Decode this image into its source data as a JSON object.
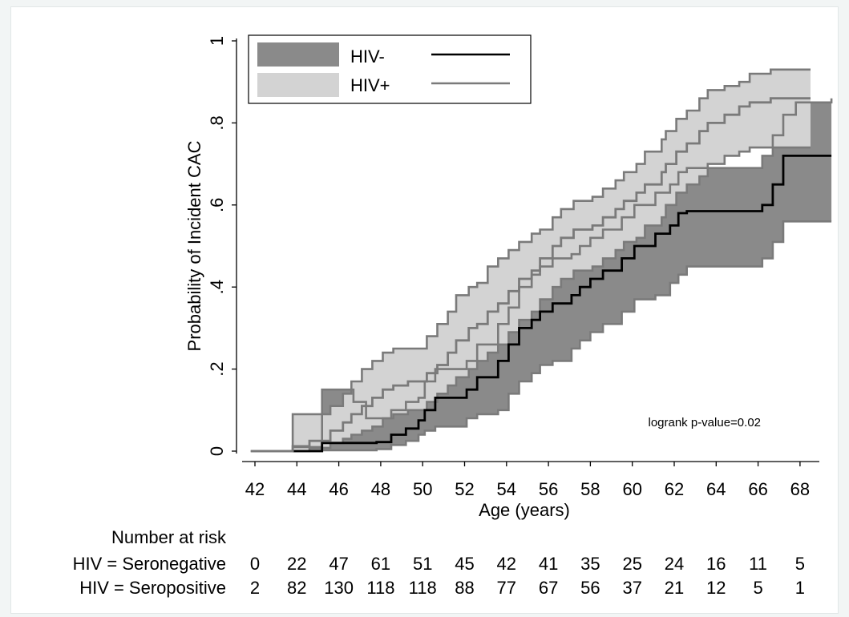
{
  "chart_data": {
    "type": "area",
    "ylabel": "Probability of Incident CAC",
    "xlabel": "Age (years)",
    "xlim": [
      41.5,
      70.5
    ],
    "ylim": [
      0,
      1
    ],
    "x_ticks": [
      "42",
      "44",
      "46",
      "48",
      "50",
      "52",
      "54",
      "56",
      "58",
      "60",
      "62",
      "64",
      "66",
      "68"
    ],
    "y_ticks": [
      "0",
      ".2",
      ".4",
      ".6",
      ".8",
      "1"
    ],
    "annotation": "logrank p-value=0.02",
    "legend": {
      "placement": "top-left",
      "entries": [
        {
          "label": "HIV-",
          "band_color": "#8a8a8a",
          "line_color": "#000000"
        },
        {
          "label": "HIV+",
          "band_color": "#d3d3d3",
          "line_color": "#7a7a7a"
        }
      ]
    },
    "series": [
      {
        "name": "HIV-",
        "color": "#000000",
        "band_color": "#8a8a8a",
        "estimate": [
          [
            43.8,
            0
          ],
          [
            45.2,
            0.02
          ],
          [
            47.8,
            0.022
          ],
          [
            48.5,
            0.04
          ],
          [
            49.2,
            0.055
          ],
          [
            49.8,
            0.075
          ],
          [
            50.1,
            0.1
          ],
          [
            50.6,
            0.13
          ],
          [
            52.1,
            0.15
          ],
          [
            52.6,
            0.18
          ],
          [
            53.6,
            0.22
          ],
          [
            54.1,
            0.26
          ],
          [
            54.6,
            0.3
          ],
          [
            55.2,
            0.32
          ],
          [
            55.6,
            0.34
          ],
          [
            56.2,
            0.36
          ],
          [
            57.1,
            0.38
          ],
          [
            57.5,
            0.4
          ],
          [
            58.0,
            0.42
          ],
          [
            58.6,
            0.44
          ],
          [
            59.5,
            0.47
          ],
          [
            60.1,
            0.5
          ],
          [
            61.1,
            0.53
          ],
          [
            61.8,
            0.55
          ],
          [
            62.2,
            0.58
          ],
          [
            62.6,
            0.585
          ],
          [
            66.2,
            0.6
          ],
          [
            66.7,
            0.65
          ],
          [
            67.2,
            0.72
          ],
          [
            69.5,
            0.72
          ]
        ],
        "band_low": [
          [
            43.8,
            0
          ],
          [
            45.2,
            0.002
          ],
          [
            47.8,
            0.005
          ],
          [
            48.5,
            0.015
          ],
          [
            49.2,
            0.025
          ],
          [
            49.8,
            0.04
          ],
          [
            50.1,
            0.05
          ],
          [
            50.6,
            0.06
          ],
          [
            52.1,
            0.08
          ],
          [
            52.6,
            0.09
          ],
          [
            53.6,
            0.1
          ],
          [
            54.1,
            0.14
          ],
          [
            54.6,
            0.17
          ],
          [
            55.2,
            0.19
          ],
          [
            55.6,
            0.21
          ],
          [
            56.2,
            0.22
          ],
          [
            57.1,
            0.25
          ],
          [
            57.5,
            0.27
          ],
          [
            58.0,
            0.29
          ],
          [
            58.6,
            0.31
          ],
          [
            59.5,
            0.34
          ],
          [
            60.1,
            0.37
          ],
          [
            61.1,
            0.38
          ],
          [
            61.8,
            0.41
          ],
          [
            62.2,
            0.43
          ],
          [
            62.6,
            0.45
          ],
          [
            66.2,
            0.47
          ],
          [
            66.7,
            0.51
          ],
          [
            67.2,
            0.56
          ],
          [
            69.5,
            0.56
          ]
        ],
        "band_high": [
          [
            43.8,
            0.01
          ],
          [
            45.2,
            0.15
          ],
          [
            46.7,
            0.12
          ],
          [
            47.3,
            0.08
          ],
          [
            48.5,
            0.1
          ],
          [
            49.2,
            0.12
          ],
          [
            49.8,
            0.13
          ],
          [
            50.1,
            0.17
          ],
          [
            50.6,
            0.2
          ],
          [
            52.1,
            0.22
          ],
          [
            52.6,
            0.26
          ],
          [
            53.6,
            0.31
          ],
          [
            54.1,
            0.35
          ],
          [
            54.6,
            0.4
          ],
          [
            55.2,
            0.43
          ],
          [
            55.6,
            0.45
          ],
          [
            56.2,
            0.47
          ],
          [
            57.1,
            0.48
          ],
          [
            57.5,
            0.5
          ],
          [
            58.0,
            0.52
          ],
          [
            58.6,
            0.54
          ],
          [
            59.5,
            0.57
          ],
          [
            60.1,
            0.6
          ],
          [
            61.1,
            0.63
          ],
          [
            61.8,
            0.65
          ],
          [
            62.2,
            0.68
          ],
          [
            62.6,
            0.69
          ],
          [
            66.2,
            0.72
          ],
          [
            66.7,
            0.77
          ],
          [
            67.2,
            0.82
          ],
          [
            67.8,
            0.85
          ],
          [
            69.5,
            0.86
          ]
        ]
      },
      {
        "name": "HIV+",
        "color": "#7a7a7a",
        "band_color": "#d3d3d3",
        "estimate": [
          [
            41.8,
            0
          ],
          [
            43.8,
            0.012
          ],
          [
            44.6,
            0.025
          ],
          [
            45.6,
            0.05
          ],
          [
            46.2,
            0.07
          ],
          [
            46.6,
            0.09
          ],
          [
            47.1,
            0.11
          ],
          [
            47.6,
            0.13
          ],
          [
            48.1,
            0.15
          ],
          [
            48.6,
            0.16
          ],
          [
            49.3,
            0.17
          ],
          [
            50.2,
            0.19
          ],
          [
            50.7,
            0.21
          ],
          [
            51.2,
            0.24
          ],
          [
            51.6,
            0.27
          ],
          [
            52.2,
            0.3
          ],
          [
            52.6,
            0.31
          ],
          [
            53.1,
            0.34
          ],
          [
            53.6,
            0.36
          ],
          [
            54.1,
            0.39
          ],
          [
            54.6,
            0.42
          ],
          [
            55.2,
            0.44
          ],
          [
            55.6,
            0.47
          ],
          [
            56.2,
            0.5
          ],
          [
            56.6,
            0.52
          ],
          [
            57.2,
            0.54
          ],
          [
            58.1,
            0.55
          ],
          [
            58.6,
            0.57
          ],
          [
            59.2,
            0.59
          ],
          [
            59.6,
            0.61
          ],
          [
            60.2,
            0.63
          ],
          [
            60.6,
            0.65
          ],
          [
            61.4,
            0.68
          ],
          [
            61.6,
            0.7
          ],
          [
            62.1,
            0.73
          ],
          [
            62.6,
            0.75
          ],
          [
            63.2,
            0.78
          ],
          [
            63.6,
            0.8
          ],
          [
            64.4,
            0.82
          ],
          [
            65.1,
            0.84
          ],
          [
            65.6,
            0.85
          ],
          [
            66.6,
            0.86
          ],
          [
            68.5,
            0.86
          ]
        ],
        "band_low": [
          [
            41.8,
            0
          ],
          [
            43.8,
            0
          ],
          [
            44.6,
            0.008
          ],
          [
            45.6,
            0.02
          ],
          [
            46.2,
            0.03
          ],
          [
            46.6,
            0.04
          ],
          [
            47.1,
            0.05
          ],
          [
            47.6,
            0.06
          ],
          [
            48.1,
            0.08
          ],
          [
            48.6,
            0.09
          ],
          [
            49.3,
            0.1
          ],
          [
            50.2,
            0.12
          ],
          [
            50.7,
            0.14
          ],
          [
            51.2,
            0.16
          ],
          [
            51.6,
            0.18
          ],
          [
            52.2,
            0.2
          ],
          [
            52.6,
            0.22
          ],
          [
            53.1,
            0.24
          ],
          [
            53.6,
            0.26
          ],
          [
            54.1,
            0.29
          ],
          [
            54.6,
            0.32
          ],
          [
            55.2,
            0.34
          ],
          [
            55.6,
            0.37
          ],
          [
            56.2,
            0.4
          ],
          [
            56.6,
            0.42
          ],
          [
            57.2,
            0.44
          ],
          [
            58.1,
            0.45
          ],
          [
            58.6,
            0.47
          ],
          [
            59.2,
            0.49
          ],
          [
            59.6,
            0.51
          ],
          [
            60.2,
            0.52
          ],
          [
            60.6,
            0.55
          ],
          [
            61.4,
            0.57
          ],
          [
            61.6,
            0.6
          ],
          [
            62.1,
            0.63
          ],
          [
            62.6,
            0.65
          ],
          [
            63.2,
            0.67
          ],
          [
            63.6,
            0.7
          ],
          [
            64.4,
            0.72
          ],
          [
            65.1,
            0.73
          ],
          [
            65.6,
            0.74
          ],
          [
            68.5,
            0.74
          ]
        ],
        "band_high": [
          [
            41.8,
            0
          ],
          [
            43.8,
            0.09
          ],
          [
            44.6,
            0.09
          ],
          [
            45.6,
            0.11
          ],
          [
            46.2,
            0.14
          ],
          [
            46.6,
            0.17
          ],
          [
            47.1,
            0.2
          ],
          [
            47.6,
            0.22
          ],
          [
            48.1,
            0.24
          ],
          [
            48.6,
            0.25
          ],
          [
            49.3,
            0.25
          ],
          [
            50.2,
            0.28
          ],
          [
            50.7,
            0.31
          ],
          [
            51.2,
            0.34
          ],
          [
            51.6,
            0.38
          ],
          [
            52.2,
            0.4
          ],
          [
            52.6,
            0.41
          ],
          [
            53.1,
            0.45
          ],
          [
            53.6,
            0.47
          ],
          [
            54.1,
            0.49
          ],
          [
            54.6,
            0.51
          ],
          [
            55.2,
            0.53
          ],
          [
            55.6,
            0.54
          ],
          [
            56.2,
            0.57
          ],
          [
            56.6,
            0.59
          ],
          [
            57.2,
            0.61
          ],
          [
            58.1,
            0.62
          ],
          [
            58.6,
            0.64
          ],
          [
            59.2,
            0.66
          ],
          [
            59.6,
            0.68
          ],
          [
            60.2,
            0.7
          ],
          [
            60.6,
            0.73
          ],
          [
            61.4,
            0.76
          ],
          [
            61.6,
            0.78
          ],
          [
            62.1,
            0.81
          ],
          [
            62.6,
            0.83
          ],
          [
            63.2,
            0.86
          ],
          [
            63.6,
            0.88
          ],
          [
            64.4,
            0.89
          ],
          [
            65.1,
            0.9
          ],
          [
            65.6,
            0.92
          ],
          [
            66.6,
            0.93
          ],
          [
            68.5,
            0.93
          ]
        ]
      }
    ],
    "risk_table": {
      "title": "Number at risk",
      "rows": [
        {
          "label": "HIV = Seronegative",
          "values": [
            "0",
            "22",
            "47",
            "61",
            "51",
            "45",
            "42",
            "41",
            "35",
            "25",
            "24",
            "16",
            "11",
            "5"
          ]
        },
        {
          "label": "HIV = Seropositive",
          "values": [
            "2",
            "82",
            "130",
            "118",
            "118",
            "88",
            "77",
            "67",
            "56",
            "37",
            "21",
            "12",
            "5",
            "1"
          ]
        }
      ]
    }
  }
}
